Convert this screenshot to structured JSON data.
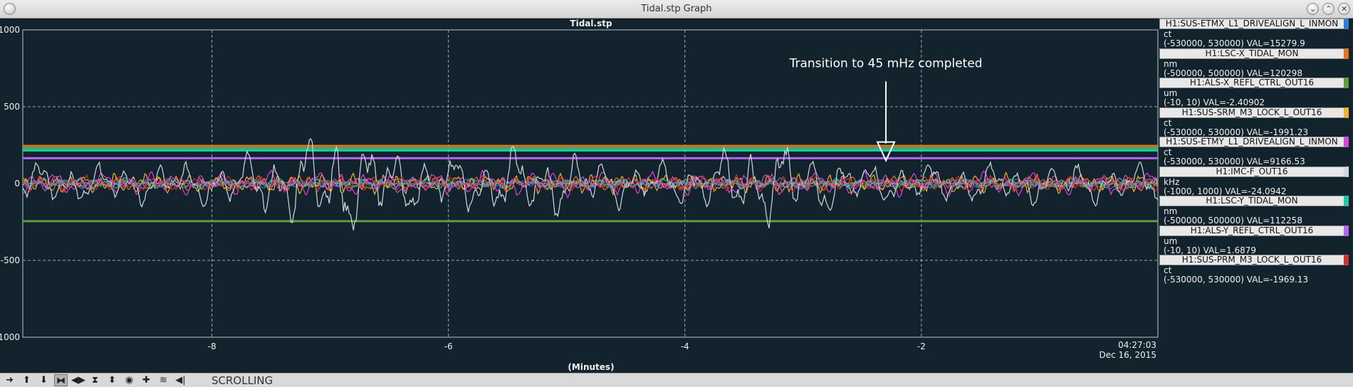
{
  "window": {
    "title": "Tidal.stp Graph",
    "menu_icon": "menu-icon",
    "buttons": [
      "minimize-icon",
      "maximize-icon",
      "close-icon"
    ]
  },
  "chart_data": {
    "type": "line",
    "title": "Tidal.stp",
    "xlabel": "(Minutes)",
    "ylabel": "",
    "xlim": [
      -9.6,
      0
    ],
    "ylim": [
      -1000,
      1000
    ],
    "x_ticks": [
      -8,
      -6,
      -4,
      -2
    ],
    "y_ticks": [
      -1000,
      -500,
      0,
      500,
      1000
    ],
    "x_tick_labels": [
      "-8",
      "-6",
      "-4",
      "-2"
    ],
    "y_tick_labels": [
      "1000",
      "500",
      "0",
      "-500",
      "-1000"
    ],
    "grid": true,
    "background": "#12232d",
    "timestamp": {
      "time": "04:27:03",
      "date": "Dec 16, 2015"
    },
    "annotation": {
      "text": "Transition to 45 mHz completed",
      "x": -2.3,
      "y_top": 665,
      "y_bottom": 150
    },
    "flat_lines": [
      {
        "color": "#e8731e",
        "y": 245
      },
      {
        "color": "#38b86a",
        "y": 230
      },
      {
        "color": "#1ec8a8",
        "y": 215
      },
      {
        "color": "#b266ff",
        "y": 165
      },
      {
        "color": "#5aa03c",
        "y": -245
      }
    ],
    "series": [
      {
        "name": "H1:SUS-ETMX_L1_DRIVEALIGN_L_INMON",
        "color": "#2a7fd4",
        "unit": "ct",
        "range": "(-530000, 530000) VAL=15279.9",
        "amp": 30,
        "freq": 9,
        "seed": 1
      },
      {
        "name": "H1:LSC-X_TIDAL_MON",
        "color": "#e8731e",
        "unit": "nm",
        "range": "(-500000, 500000) VAL=120298",
        "amp": 40,
        "freq": 12,
        "seed": 2
      },
      {
        "name": "H1:ALS-X_REFL_CTRL_OUT16",
        "color": "#5aa03c",
        "unit": "um",
        "range": "(-10, 10) VAL=-2.40902",
        "amp": 25,
        "freq": 14,
        "seed": 3
      },
      {
        "name": "H1:SUS-SRM_M3_LOCK_L_OUT16",
        "color": "#f0b030",
        "unit": "ct",
        "range": "(-530000, 530000) VAL=-1991.23",
        "amp": 55,
        "freq": 16,
        "seed": 4
      },
      {
        "name": "H1:SUS-ETMY_L1_DRIVEALIGN_L_INMON",
        "color": "#e040e0",
        "unit": "ct",
        "range": "(-530000, 530000) VAL=9166.53",
        "amp": 70,
        "freq": 10,
        "seed": 5
      },
      {
        "name": "H1:IMC-F_OUT16",
        "color": "#d0d8dc",
        "unit": "kHz",
        "range": "(-1000, 1000) VAL=-24.0942",
        "amp": 120,
        "freq": 8,
        "seed": 6
      },
      {
        "name": "H1:LSC-Y_TIDAL_MON",
        "color": "#1ec8a8",
        "unit": "nm",
        "range": "(-500000, 500000) VAL=112258",
        "amp": 30,
        "freq": 11,
        "seed": 7
      },
      {
        "name": "H1:ALS-Y_REFL_CTRL_OUT16",
        "color": "#b266ff",
        "unit": "um",
        "range": "(-10, 10) VAL=1.6879",
        "amp": 25,
        "freq": 13,
        "seed": 8
      },
      {
        "name": "H1:SUS-PRM_M3_LOCK_L_OUT16",
        "color": "#d43030",
        "unit": "ct",
        "range": "(-530000, 530000) VAL=-1969.13",
        "amp": 45,
        "freq": 15,
        "seed": 9
      }
    ]
  },
  "toolbar": {
    "buttons": [
      {
        "name": "scroll-right-icon",
        "glyph": "➜"
      },
      {
        "name": "arrow-up-icon",
        "glyph": "⬆"
      },
      {
        "name": "arrow-down-icon",
        "glyph": "⬇"
      },
      {
        "name": "expand-horizontal-icon",
        "glyph": "⧓",
        "active": true
      },
      {
        "name": "compress-horizontal-icon",
        "glyph": "◀▶"
      },
      {
        "name": "expand-vertical-icon",
        "glyph": "⧗"
      },
      {
        "name": "compress-vertical-icon",
        "glyph": "⬍"
      },
      {
        "name": "record-icon",
        "glyph": "◉"
      },
      {
        "name": "crosshair-icon",
        "glyph": "✚"
      },
      {
        "name": "wave-icon",
        "glyph": "≋"
      },
      {
        "name": "scroll-back-icon",
        "glyph": "◀|"
      }
    ],
    "mode": "SCROLLING"
  }
}
